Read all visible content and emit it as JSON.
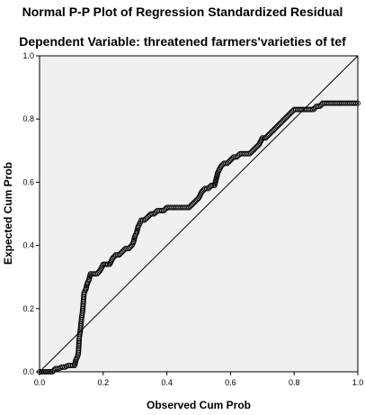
{
  "chart_data": {
    "type": "scatter",
    "title": "Normal P-P Plot of Regression Standardized Residual",
    "subtitle": "Dependent Variable: threatened farmers'varieties of tef",
    "xlabel": "Observed Cum Prob",
    "ylabel": "Expected Cum Prob",
    "xlim": [
      0.0,
      1.0
    ],
    "ylim": [
      0.0,
      1.0
    ],
    "xticks": [
      "0.0",
      "0.2",
      "0.4",
      "0.6",
      "0.8",
      "1.0"
    ],
    "yticks": [
      "0.0",
      "0.2",
      "0.4",
      "0.6",
      "0.8",
      "1.0"
    ],
    "reference_line": {
      "from": [
        0,
        0
      ],
      "to": [
        1,
        1
      ]
    },
    "marker": "open-circle",
    "plot_background": "#f0f0f0",
    "points": [
      [
        0.0,
        0.0
      ],
      [
        0.01,
        0.0
      ],
      [
        0.02,
        0.0
      ],
      [
        0.03,
        0.0
      ],
      [
        0.04,
        0.0
      ],
      [
        0.05,
        0.01
      ],
      [
        0.06,
        0.01
      ],
      [
        0.07,
        0.015
      ],
      [
        0.08,
        0.015
      ],
      [
        0.09,
        0.02
      ],
      [
        0.1,
        0.02
      ],
      [
        0.11,
        0.02
      ],
      [
        0.115,
        0.04
      ],
      [
        0.12,
        0.05
      ],
      [
        0.122,
        0.06
      ],
      [
        0.125,
        0.11
      ],
      [
        0.128,
        0.13
      ],
      [
        0.13,
        0.15
      ],
      [
        0.132,
        0.17
      ],
      [
        0.135,
        0.19
      ],
      [
        0.14,
        0.25
      ],
      [
        0.145,
        0.26
      ],
      [
        0.15,
        0.28
      ],
      [
        0.155,
        0.29
      ],
      [
        0.16,
        0.31
      ],
      [
        0.17,
        0.31
      ],
      [
        0.18,
        0.31
      ],
      [
        0.19,
        0.32
      ],
      [
        0.2,
        0.34
      ],
      [
        0.21,
        0.34
      ],
      [
        0.22,
        0.34
      ],
      [
        0.23,
        0.36
      ],
      [
        0.24,
        0.37
      ],
      [
        0.25,
        0.37
      ],
      [
        0.26,
        0.38
      ],
      [
        0.27,
        0.39
      ],
      [
        0.28,
        0.39
      ],
      [
        0.29,
        0.4
      ],
      [
        0.295,
        0.41
      ],
      [
        0.3,
        0.43
      ],
      [
        0.305,
        0.44
      ],
      [
        0.31,
        0.46
      ],
      [
        0.315,
        0.47
      ],
      [
        0.32,
        0.48
      ],
      [
        0.33,
        0.48
      ],
      [
        0.34,
        0.49
      ],
      [
        0.35,
        0.5
      ],
      [
        0.36,
        0.5
      ],
      [
        0.37,
        0.51
      ],
      [
        0.38,
        0.51
      ],
      [
        0.39,
        0.51
      ],
      [
        0.4,
        0.52
      ],
      [
        0.41,
        0.52
      ],
      [
        0.42,
        0.52
      ],
      [
        0.43,
        0.52
      ],
      [
        0.44,
        0.52
      ],
      [
        0.45,
        0.52
      ],
      [
        0.46,
        0.52
      ],
      [
        0.47,
        0.52
      ],
      [
        0.48,
        0.53
      ],
      [
        0.49,
        0.54
      ],
      [
        0.5,
        0.55
      ],
      [
        0.51,
        0.57
      ],
      [
        0.52,
        0.58
      ],
      [
        0.53,
        0.58
      ],
      [
        0.54,
        0.59
      ],
      [
        0.55,
        0.59
      ],
      [
        0.555,
        0.61
      ],
      [
        0.56,
        0.63
      ],
      [
        0.57,
        0.65
      ],
      [
        0.58,
        0.66
      ],
      [
        0.59,
        0.66
      ],
      [
        0.6,
        0.67
      ],
      [
        0.61,
        0.68
      ],
      [
        0.62,
        0.68
      ],
      [
        0.63,
        0.69
      ],
      [
        0.64,
        0.69
      ],
      [
        0.65,
        0.69
      ],
      [
        0.66,
        0.69
      ],
      [
        0.67,
        0.7
      ],
      [
        0.68,
        0.71
      ],
      [
        0.69,
        0.72
      ],
      [
        0.7,
        0.74
      ],
      [
        0.71,
        0.74
      ],
      [
        0.72,
        0.75
      ],
      [
        0.73,
        0.76
      ],
      [
        0.74,
        0.77
      ],
      [
        0.75,
        0.78
      ],
      [
        0.76,
        0.79
      ],
      [
        0.77,
        0.8
      ],
      [
        0.78,
        0.81
      ],
      [
        0.79,
        0.82
      ],
      [
        0.8,
        0.83
      ],
      [
        0.81,
        0.83
      ],
      [
        0.82,
        0.83
      ],
      [
        0.83,
        0.83
      ],
      [
        0.84,
        0.83
      ],
      [
        0.85,
        0.83
      ],
      [
        0.86,
        0.83
      ],
      [
        0.87,
        0.84
      ],
      [
        0.88,
        0.84
      ],
      [
        0.89,
        0.85
      ],
      [
        0.9,
        0.85
      ],
      [
        0.91,
        0.85
      ],
      [
        0.92,
        0.85
      ],
      [
        0.93,
        0.85
      ],
      [
        0.94,
        0.85
      ],
      [
        0.95,
        0.85
      ],
      [
        0.96,
        0.85
      ],
      [
        0.97,
        0.85
      ],
      [
        0.98,
        0.85
      ],
      [
        0.99,
        0.85
      ],
      [
        1.0,
        0.85
      ]
    ]
  }
}
